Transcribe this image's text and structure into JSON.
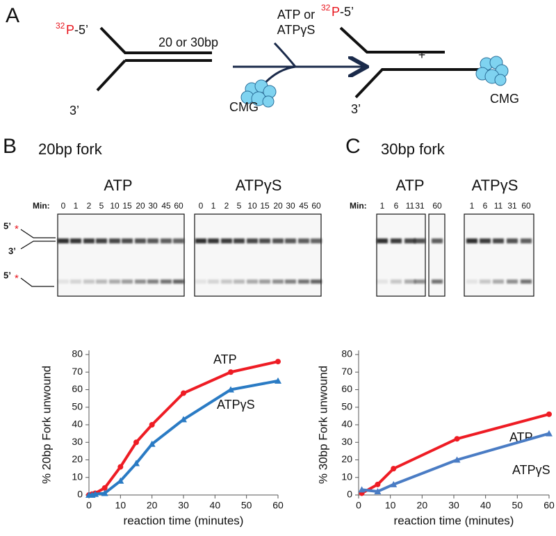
{
  "panel_a": {
    "label": "A",
    "substrate": {
      "isotope_mass": "32",
      "isotope_element": "P",
      "end_5": "-5’",
      "duplex": "20 or 30bp",
      "end_3": "3’"
    },
    "reaction": {
      "nucleotide": [
        "ATP or",
        "ATPγS"
      ],
      "enzyme": "CMG"
    },
    "products": {
      "isotope_mass": "32",
      "isotope_element": "P",
      "end_5": "-5’",
      "plus": "+",
      "end_3": "3’",
      "enzyme": "CMG"
    }
  },
  "panel_b": {
    "label": "B",
    "title": "20bp fork",
    "min_label": "Min:",
    "gels": [
      {
        "title": "ATP",
        "lanes": [
          "0",
          "1",
          "2",
          "5",
          "10",
          "15",
          "20",
          "30",
          "45",
          "60"
        ]
      },
      {
        "title": "ATPγS",
        "lanes": [
          "0",
          "1",
          "2",
          "5",
          "10",
          "15",
          "20",
          "30",
          "45",
          "60"
        ]
      }
    ],
    "markers": {
      "fork_5": "5’",
      "fork_star": "*",
      "fork_3": "3’",
      "single_5": "5’",
      "single_star": "*"
    }
  },
  "panel_c": {
    "label": "C",
    "title": "30bp fork",
    "min_label": "Min:",
    "gels": [
      {
        "title": "ATP",
        "lanes": [
          "1",
          "6",
          "11",
          "31",
          "60"
        ]
      },
      {
        "title": "ATPγS",
        "lanes": [
          "1",
          "6",
          "11",
          "31",
          "60"
        ]
      }
    ]
  },
  "chart_data": [
    {
      "type": "line",
      "xlabel": "reaction time (minutes)",
      "ylabel": "% 20bp Fork unwound",
      "x": [
        0,
        1,
        2,
        5,
        10,
        15,
        20,
        30,
        45,
        60
      ],
      "series": [
        {
          "name": "ATP",
          "color": "#ee1c24",
          "marker": "circle",
          "values": [
            0,
            0.5,
            1,
            4,
            16,
            30,
            40,
            58,
            70,
            76
          ]
        },
        {
          "name": "ATPγS",
          "color": "#2a7bc4",
          "marker": "triangle",
          "values": [
            0,
            0,
            0.5,
            1,
            8,
            18,
            29,
            43,
            60,
            65
          ]
        }
      ],
      "xlim": [
        0,
        60
      ],
      "xticks": [
        0,
        10,
        20,
        30,
        40,
        50,
        60
      ],
      "ylim": [
        0,
        80
      ],
      "yticks": [
        0,
        10,
        20,
        30,
        40,
        50,
        60,
        70,
        80
      ]
    },
    {
      "type": "line",
      "xlabel": "reaction time (minutes)",
      "ylabel": "% 30bp Fork unwound",
      "x": [
        1,
        6,
        11,
        31,
        60
      ],
      "series": [
        {
          "name": "ATP",
          "color": "#ee1c24",
          "marker": "circle",
          "values": [
            1,
            6,
            15,
            32,
            46
          ]
        },
        {
          "name": "ATPγS",
          "color": "#4a7cc4",
          "marker": "triangle",
          "values": [
            3,
            2,
            6,
            20,
            35
          ]
        }
      ],
      "xlim": [
        0,
        60
      ],
      "xticks": [
        0,
        10,
        20,
        30,
        40,
        50,
        60
      ],
      "ylim": [
        0,
        80
      ],
      "yticks": [
        0,
        10,
        20,
        30,
        40,
        50,
        60,
        70,
        80
      ]
    }
  ]
}
